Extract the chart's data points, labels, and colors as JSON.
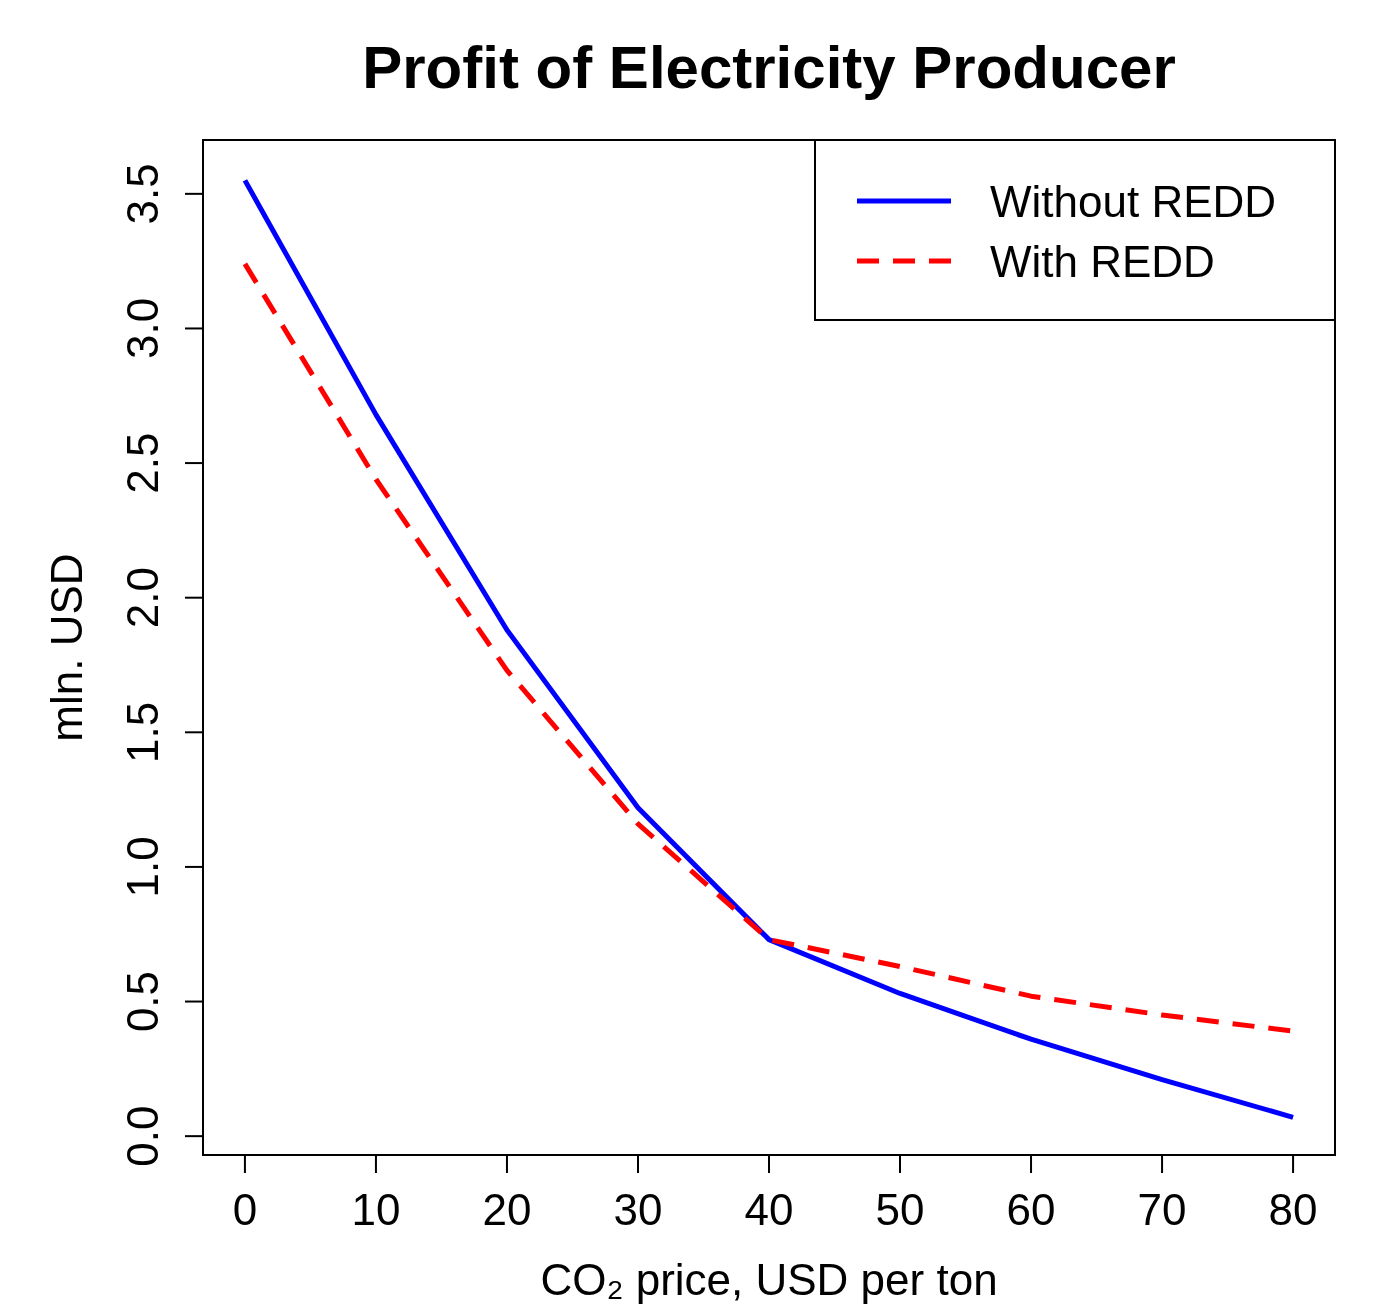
{
  "chart_data": {
    "type": "line",
    "title": "Profit of Electricity Producer",
    "xlabel": "CO₂ price, USD per ton",
    "ylabel": "mln. USD",
    "x": [
      0,
      10,
      20,
      30,
      40,
      50,
      60,
      70,
      80
    ],
    "series": [
      {
        "name": "Without REDD",
        "color": "#0000ff",
        "line_style": "solid",
        "values": [
          3.55,
          2.68,
          1.88,
          1.22,
          0.73,
          0.53,
          0.36,
          0.21,
          0.07
        ]
      },
      {
        "name": "With REDD",
        "color": "#ff0000",
        "line_style": "dashed",
        "values": [
          3.24,
          2.44,
          1.73,
          1.16,
          0.73,
          0.63,
          0.52,
          0.45,
          0.39
        ]
      }
    ],
    "xlim": [
      -3.2,
      83.2
    ],
    "ylim": [
      -0.07,
      3.7
    ],
    "xticks": [
      0,
      10,
      20,
      30,
      40,
      50,
      60,
      70,
      80
    ],
    "yticks": [
      {
        "value": 0,
        "label": "0.0"
      },
      {
        "value": 0.5,
        "label": "0.5"
      },
      {
        "value": 1,
        "label": "1.0"
      },
      {
        "value": 1.5,
        "label": "1.5"
      },
      {
        "value": 2,
        "label": "2.0"
      },
      {
        "value": 2.5,
        "label": "2.5"
      },
      {
        "value": 3,
        "label": "3.0"
      },
      {
        "value": 3.5,
        "label": "3.5"
      }
    ],
    "grid": false,
    "legend": "top right"
  }
}
